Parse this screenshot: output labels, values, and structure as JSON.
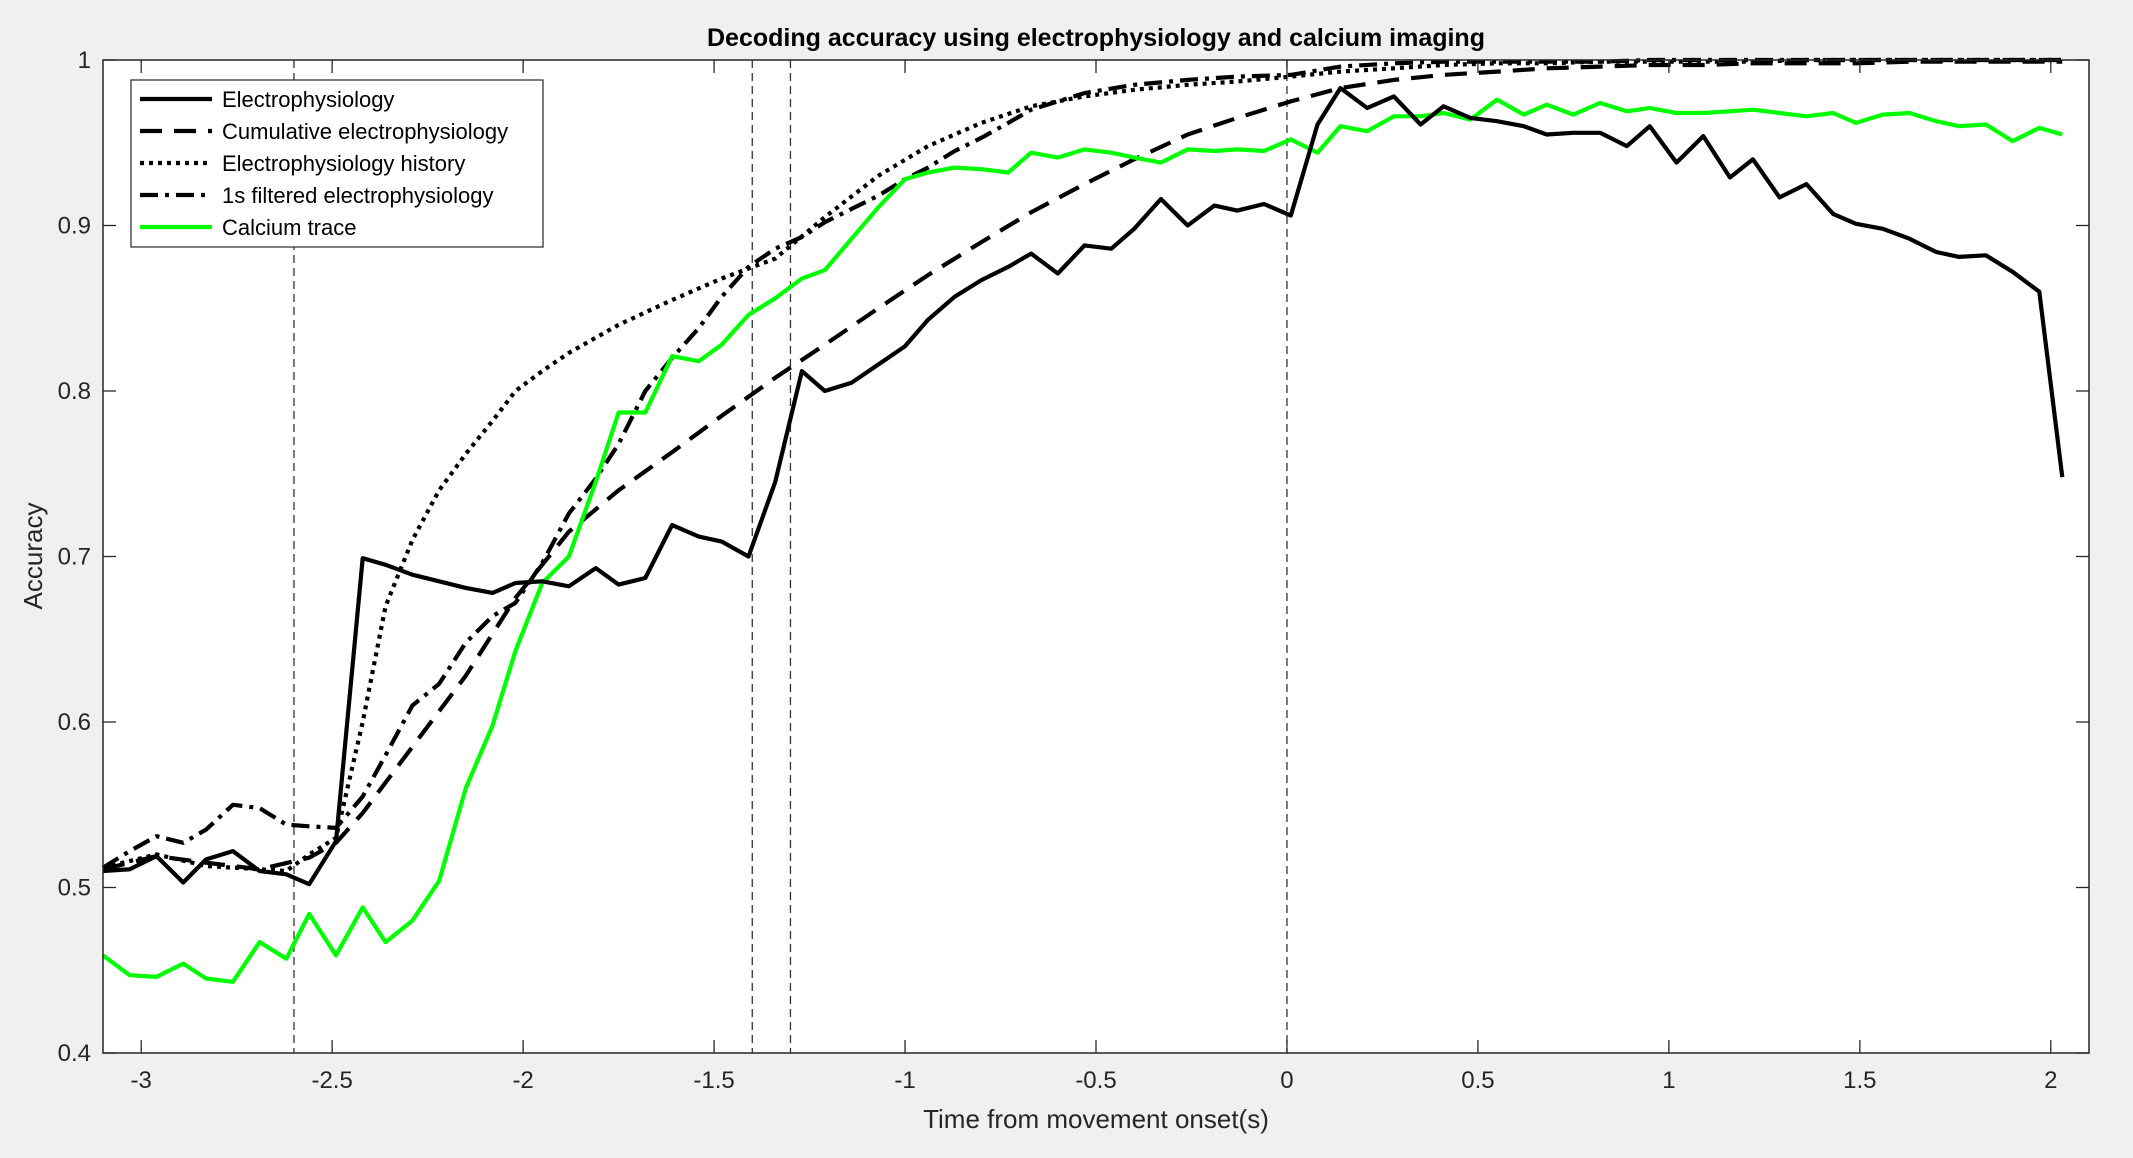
{
  "chart_data": {
    "type": "line",
    "title": "Decoding accuracy using electrophysiology and calcium imaging",
    "xlabel": "Time from movement onset(s)",
    "ylabel": "Accuracy",
    "xlim": [
      -3.1,
      2.1
    ],
    "ylim": [
      0.4,
      1.0
    ],
    "xticks": [
      -3,
      -2.5,
      -2,
      -1.5,
      -1,
      -0.5,
      0,
      0.5,
      1,
      1.5,
      2
    ],
    "xtick_labels": [
      "-3",
      "-2.5",
      "-2",
      "-1.5",
      "-1",
      "-0.5",
      "0",
      "0.5",
      "1",
      "1.5",
      "2"
    ],
    "yticks": [
      0.4,
      0.5,
      0.6,
      0.7,
      0.8,
      0.9,
      1.0
    ],
    "ytick_labels": [
      "0.4",
      "0.5",
      "0.6",
      "0.7",
      "0.8",
      "0.9",
      "1"
    ],
    "grid": false,
    "legend_position": "top-left",
    "vertical_lines": [
      -2.6,
      -1.4,
      -1.3,
      0
    ],
    "series": [
      {
        "name": "Electrophysiology",
        "color": "#000000",
        "style": "solid",
        "x": [
          -3.1,
          -3.03,
          -2.96,
          -2.89,
          -2.83,
          -2.76,
          -2.69,
          -2.62,
          -2.56,
          -2.49,
          -2.42,
          -2.36,
          -2.29,
          -2.22,
          -2.15,
          -2.08,
          -2.02,
          -1.95,
          -1.88,
          -1.81,
          -1.75,
          -1.68,
          -1.61,
          -1.54,
          -1.48,
          -1.41,
          -1.34,
          -1.27,
          -1.21,
          -1.14,
          -1.07,
          -1.0,
          -0.94,
          -0.87,
          -0.8,
          -0.73,
          -0.67,
          -0.6,
          -0.53,
          -0.46,
          -0.4,
          -0.33,
          -0.26,
          -0.19,
          -0.13,
          -0.06,
          0.01,
          0.08,
          0.14,
          0.21,
          0.28,
          0.35,
          0.41,
          0.48,
          0.55,
          0.62,
          0.68,
          0.75,
          0.82,
          0.89,
          0.95,
          1.02,
          1.09,
          1.16,
          1.22,
          1.29,
          1.36,
          1.43,
          1.49,
          1.56,
          1.63,
          1.7,
          1.76,
          1.83,
          1.9,
          1.97,
          2.03
        ],
        "y": [
          0.51,
          0.511,
          0.519,
          0.503,
          0.517,
          0.522,
          0.51,
          0.508,
          0.502,
          0.528,
          0.699,
          0.695,
          0.689,
          0.685,
          0.681,
          0.678,
          0.684,
          0.685,
          0.682,
          0.693,
          0.683,
          0.687,
          0.719,
          0.712,
          0.709,
          0.7,
          0.745,
          0.812,
          0.8,
          0.805,
          0.816,
          0.827,
          0.843,
          0.857,
          0.867,
          0.875,
          0.883,
          0.871,
          0.888,
          0.886,
          0.898,
          0.916,
          0.9,
          0.912,
          0.909,
          0.913,
          0.906,
          0.961,
          0.983,
          0.971,
          0.978,
          0.961,
          0.972,
          0.965,
          0.963,
          0.96,
          0.955,
          0.956,
          0.956,
          0.948,
          0.96,
          0.938,
          0.954,
          0.929,
          0.94,
          0.917,
          0.925,
          0.907,
          0.901,
          0.898,
          0.892,
          0.884,
          0.881,
          0.882,
          0.872,
          0.86,
          0.748
        ]
      },
      {
        "name": "Cumulative electrophysiology",
        "color": "#000000",
        "style": "dashed",
        "x": [
          -3.1,
          -2.96,
          -2.83,
          -2.69,
          -2.56,
          -2.49,
          -2.42,
          -2.29,
          -2.15,
          -2.02,
          -1.88,
          -1.75,
          -1.61,
          -1.48,
          -1.34,
          -1.21,
          -1.07,
          -0.94,
          -0.8,
          -0.67,
          -0.53,
          -0.4,
          -0.26,
          -0.13,
          0.01,
          0.14,
          0.28,
          0.41,
          0.55,
          0.68,
          0.82,
          0.95,
          1.09,
          1.22,
          1.36,
          1.49,
          1.63,
          1.76,
          1.9,
          2.03
        ],
        "y": [
          0.511,
          0.519,
          0.515,
          0.511,
          0.518,
          0.527,
          0.545,
          0.585,
          0.628,
          0.675,
          0.715,
          0.74,
          0.763,
          0.785,
          0.808,
          0.828,
          0.85,
          0.87,
          0.89,
          0.908,
          0.925,
          0.94,
          0.955,
          0.965,
          0.975,
          0.983,
          0.988,
          0.991,
          0.993,
          0.995,
          0.996,
          0.997,
          0.997,
          0.998,
          0.998,
          0.998,
          0.999,
          0.999,
          0.999,
          0.999
        ]
      },
      {
        "name": "Electrophysiology history",
        "color": "#000000",
        "style": "dotted",
        "x": [
          -3.1,
          -2.96,
          -2.83,
          -2.69,
          -2.62,
          -2.56,
          -2.49,
          -2.42,
          -2.36,
          -2.29,
          -2.22,
          -2.15,
          -2.08,
          -2.02,
          -1.95,
          -1.88,
          -1.75,
          -1.61,
          -1.48,
          -1.34,
          -1.21,
          -1.07,
          -0.94,
          -0.8,
          -0.67,
          -0.53,
          -0.4,
          -0.26,
          -0.13,
          0.01,
          0.14,
          0.28,
          0.41,
          0.55,
          0.68,
          0.82,
          0.95,
          1.09,
          1.22,
          1.36,
          1.49,
          1.63,
          1.76,
          1.9,
          2.03
        ],
        "y": [
          0.512,
          0.52,
          0.513,
          0.511,
          0.51,
          0.52,
          0.53,
          0.6,
          0.67,
          0.71,
          0.74,
          0.762,
          0.782,
          0.8,
          0.812,
          0.823,
          0.84,
          0.855,
          0.868,
          0.88,
          0.905,
          0.93,
          0.948,
          0.962,
          0.972,
          0.978,
          0.982,
          0.985,
          0.987,
          0.99,
          0.993,
          0.995,
          0.997,
          0.998,
          0.998,
          0.999,
          0.999,
          0.999,
          0.999,
          1.0,
          1.0,
          1.0,
          1.0,
          1.0,
          1.0
        ]
      },
      {
        "name": "1s filtered electrophysiology",
        "color": "#000000",
        "style": "dashdot",
        "x": [
          -3.1,
          -3.03,
          -2.96,
          -2.89,
          -2.83,
          -2.76,
          -2.69,
          -2.62,
          -2.56,
          -2.49,
          -2.42,
          -2.36,
          -2.29,
          -2.22,
          -2.15,
          -2.08,
          -2.02,
          -1.95,
          -1.88,
          -1.81,
          -1.75,
          -1.68,
          -1.61,
          -1.54,
          -1.48,
          -1.41,
          -1.34,
          -1.27,
          -1.21,
          -1.14,
          -1.07,
          -1.0,
          -0.94,
          -0.87,
          -0.8,
          -0.73,
          -0.67,
          -0.53,
          -0.4,
          -0.26,
          -0.13,
          0.01,
          0.14,
          0.28,
          0.41,
          0.55,
          0.68,
          0.82,
          0.95,
          1.09,
          1.22,
          1.36,
          1.49,
          1.63,
          1.76,
          1.9,
          2.03
        ],
        "y": [
          0.512,
          0.522,
          0.531,
          0.527,
          0.535,
          0.55,
          0.548,
          0.538,
          0.537,
          0.536,
          0.555,
          0.58,
          0.61,
          0.623,
          0.648,
          0.664,
          0.672,
          0.696,
          0.726,
          0.747,
          0.768,
          0.8,
          0.82,
          0.838,
          0.857,
          0.875,
          0.886,
          0.893,
          0.902,
          0.91,
          0.918,
          0.928,
          0.935,
          0.945,
          0.953,
          0.962,
          0.97,
          0.98,
          0.985,
          0.988,
          0.99,
          0.991,
          0.996,
          0.998,
          0.999,
          0.999,
          0.999,
          0.999,
          1.0,
          1.0,
          1.0,
          1.0,
          1.0,
          1.0,
          1.0,
          1.0,
          1.0
        ]
      },
      {
        "name": "Calcium trace",
        "color": "#00ff00",
        "style": "solid",
        "x": [
          -3.1,
          -3.03,
          -2.96,
          -2.89,
          -2.83,
          -2.76,
          -2.69,
          -2.62,
          -2.56,
          -2.49,
          -2.42,
          -2.36,
          -2.29,
          -2.22,
          -2.15,
          -2.08,
          -2.02,
          -1.95,
          -1.88,
          -1.81,
          -1.75,
          -1.68,
          -1.61,
          -1.54,
          -1.48,
          -1.41,
          -1.34,
          -1.27,
          -1.21,
          -1.14,
          -1.07,
          -1.0,
          -0.94,
          -0.87,
          -0.8,
          -0.73,
          -0.67,
          -0.6,
          -0.53,
          -0.46,
          -0.4,
          -0.33,
          -0.26,
          -0.19,
          -0.13,
          -0.06,
          0.01,
          0.08,
          0.14,
          0.21,
          0.28,
          0.35,
          0.41,
          0.48,
          0.55,
          0.62,
          0.68,
          0.75,
          0.82,
          0.89,
          0.95,
          1.02,
          1.09,
          1.16,
          1.22,
          1.29,
          1.36,
          1.43,
          1.49,
          1.56,
          1.63,
          1.7,
          1.76,
          1.83,
          1.9,
          1.97,
          2.03
        ],
        "y": [
          0.459,
          0.447,
          0.446,
          0.454,
          0.445,
          0.443,
          0.467,
          0.457,
          0.484,
          0.459,
          0.488,
          0.467,
          0.48,
          0.504,
          0.56,
          0.598,
          0.643,
          0.684,
          0.7,
          0.745,
          0.787,
          0.787,
          0.821,
          0.818,
          0.828,
          0.846,
          0.856,
          0.868,
          0.873,
          0.892,
          0.911,
          0.928,
          0.932,
          0.935,
          0.934,
          0.932,
          0.944,
          0.941,
          0.946,
          0.944,
          0.941,
          0.938,
          0.946,
          0.945,
          0.946,
          0.945,
          0.952,
          0.944,
          0.96,
          0.957,
          0.966,
          0.966,
          0.968,
          0.964,
          0.976,
          0.967,
          0.973,
          0.967,
          0.974,
          0.969,
          0.971,
          0.968,
          0.968,
          0.969,
          0.97,
          0.968,
          0.966,
          0.968,
          0.962,
          0.967,
          0.968,
          0.963,
          0.96,
          0.961,
          0.951,
          0.959,
          0.955
        ]
      }
    ]
  }
}
